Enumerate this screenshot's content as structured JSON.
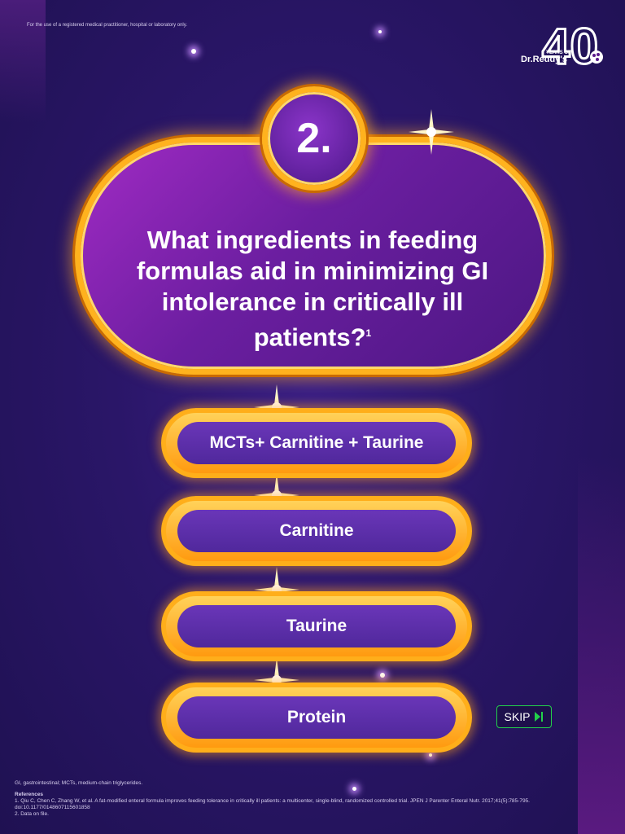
{
  "disclaimer": "For the use of a registered medical practitioner, hospital or laboratory only.",
  "logo": {
    "big_number": "40",
    "years_label": "YEARS OF",
    "brand": "Dr.Reddy's"
  },
  "question": {
    "number": "2.",
    "text": "What ingredients in feeding formulas aid in minimizing GI intolerance in critically ill patients?",
    "superscript": "1"
  },
  "answers": [
    {
      "label": "MCTs+ Carnitine + Taurine"
    },
    {
      "label": "Carnitine"
    },
    {
      "label": "Taurine"
    },
    {
      "label": "Protein"
    }
  ],
  "skip": {
    "label": "SKIP",
    "icon": "skip-next-icon",
    "color": "#22d14a"
  },
  "footnotes": {
    "abbreviations": "GI, gastrointestinal; MCTs, medium-chain triglycerides.",
    "references_title": "References",
    "references": [
      "1.  Qiu C, Chen C, Zhang W, et al. A fat-modified enteral formula improves feeding tolerance in critically ill patients: a multicenter, single-blind, randomized controlled trial. JPEN J Parenter Enteral Nutr. 2017;41(5):785-795. doi:10.1177/0148607115601858",
      "2.  Data on file."
    ]
  },
  "colors": {
    "gold": "#ffb21e",
    "panel_purple": "#6b1ea0",
    "background": "#2a1668"
  }
}
